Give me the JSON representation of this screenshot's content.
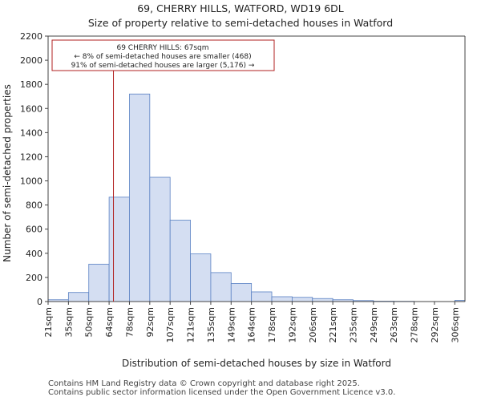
{
  "titles": {
    "line1": "69, CHERRY HILLS, WATFORD, WD19 6DL",
    "line2": "Size of property relative to semi-detached houses in Watford"
  },
  "chart_data": {
    "type": "bar",
    "title": "Size of property relative to semi-detached houses in Watford",
    "xlabel": "Distribution of semi-detached houses by size in Watford",
    "ylabel": "Number of semi-detached properties",
    "ylim": [
      0,
      2200
    ],
    "yticks": [
      0,
      200,
      400,
      600,
      800,
      1000,
      1200,
      1400,
      1600,
      1800,
      2000,
      2200
    ],
    "categories": [
      "21sqm",
      "35sqm",
      "50sqm",
      "64sqm",
      "78sqm",
      "92sqm",
      "107sqm",
      "121sqm",
      "135sqm",
      "149sqm",
      "164sqm",
      "178sqm",
      "192sqm",
      "206sqm",
      "221sqm",
      "235sqm",
      "249sqm",
      "263sqm",
      "278sqm",
      "292sqm",
      "306sqm"
    ],
    "values": [
      15,
      75,
      310,
      865,
      1720,
      1030,
      675,
      395,
      240,
      150,
      80,
      40,
      35,
      25,
      15,
      8,
      3,
      2,
      0,
      0,
      10
    ],
    "bar_color": "#d4def2",
    "bar_edge_color": "#5b82c4",
    "marker": {
      "value_sqm": 67,
      "color": "#b22222",
      "label_line1": "69 CHERRY HILLS: 67sqm",
      "label_line2": "← 8% of semi-detached houses are smaller (468)",
      "label_line3": "91% of semi-detached houses are larger (5,176) →"
    }
  },
  "footer": {
    "line1": "Contains HM Land Registry data © Crown copyright and database right 2025.",
    "line2": "Contains public sector information licensed under the Open Government Licence v3.0."
  }
}
